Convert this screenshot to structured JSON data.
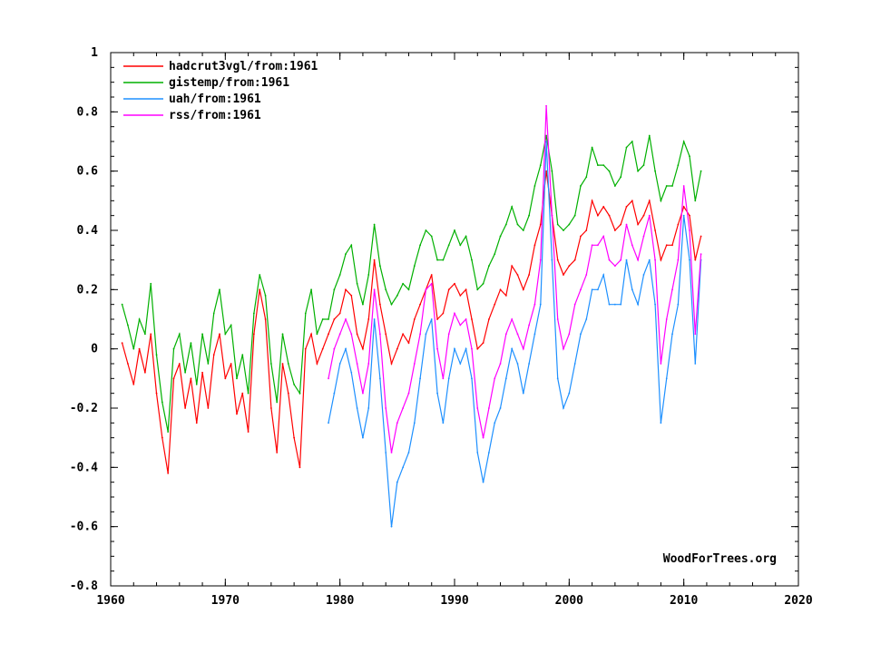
{
  "chart_data": {
    "type": "line",
    "title": "",
    "xlabel": "",
    "ylabel": "",
    "xlim": [
      1960,
      2020
    ],
    "ylim": [
      -0.8,
      1
    ],
    "x_ticks": [
      "1960",
      "1970",
      "1980",
      "1990",
      "2000",
      "2010",
      "2020"
    ],
    "y_ticks": [
      "1",
      "0.8",
      "0.6",
      "0.4",
      "0.2",
      "0",
      "-0.2",
      "-0.4",
      "-0.6",
      "-0.8"
    ],
    "grid": false,
    "legend_position": "top-left",
    "credit": "WoodForTrees.org",
    "series": [
      {
        "name": "hadcrut3vgl/from:1961",
        "color": "#ff0000",
        "x": [
          1961.0,
          1961.5,
          1962.0,
          1962.5,
          1963.0,
          1963.5,
          1964.0,
          1964.5,
          1965.0,
          1965.5,
          1966.0,
          1966.5,
          1967.0,
          1967.5,
          1968.0,
          1968.5,
          1969.0,
          1969.5,
          1970.0,
          1970.5,
          1971.0,
          1971.5,
          1972.0,
          1972.5,
          1973.0,
          1973.5,
          1974.0,
          1974.5,
          1975.0,
          1975.5,
          1976.0,
          1976.5,
          1977.0,
          1977.5,
          1978.0,
          1978.5,
          1979.0,
          1979.5,
          1980.0,
          1980.5,
          1981.0,
          1981.5,
          1982.0,
          1982.5,
          1983.0,
          1983.5,
          1984.0,
          1984.5,
          1985.0,
          1985.5,
          1986.0,
          1986.5,
          1987.0,
          1987.5,
          1988.0,
          1988.5,
          1989.0,
          1989.5,
          1990.0,
          1990.5,
          1991.0,
          1991.5,
          1992.0,
          1992.5,
          1993.0,
          1993.5,
          1994.0,
          1994.5,
          1995.0,
          1995.5,
          1996.0,
          1996.5,
          1997.0,
          1997.5,
          1998.0,
          1998.5,
          1999.0,
          1999.5,
          2000.0,
          2000.5,
          2001.0,
          2001.5,
          2002.0,
          2002.5,
          2003.0,
          2003.5,
          2004.0,
          2004.5,
          2005.0,
          2005.5,
          2006.0,
          2006.5,
          2007.0,
          2007.5,
          2008.0,
          2008.5,
          2009.0,
          2009.5,
          2010.0,
          2010.5,
          2011.0,
          2011.5
        ],
        "y": [
          0.02,
          -0.05,
          -0.12,
          0.0,
          -0.08,
          0.05,
          -0.15,
          -0.3,
          -0.42,
          -0.1,
          -0.05,
          -0.2,
          -0.1,
          -0.25,
          -0.08,
          -0.2,
          -0.02,
          0.05,
          -0.1,
          -0.05,
          -0.22,
          -0.15,
          -0.28,
          0.05,
          0.2,
          0.1,
          -0.2,
          -0.35,
          -0.05,
          -0.15,
          -0.3,
          -0.4,
          0.0,
          0.05,
          -0.05,
          0.0,
          0.05,
          0.1,
          0.12,
          0.2,
          0.18,
          0.05,
          0.0,
          0.1,
          0.3,
          0.15,
          0.05,
          -0.05,
          0.0,
          0.05,
          0.02,
          0.1,
          0.15,
          0.2,
          0.25,
          0.1,
          0.12,
          0.2,
          0.22,
          0.18,
          0.2,
          0.1,
          0.0,
          0.02,
          0.1,
          0.15,
          0.2,
          0.18,
          0.28,
          0.25,
          0.2,
          0.25,
          0.35,
          0.42,
          0.6,
          0.45,
          0.3,
          0.25,
          0.28,
          0.3,
          0.38,
          0.4,
          0.5,
          0.45,
          0.48,
          0.45,
          0.4,
          0.42,
          0.48,
          0.5,
          0.42,
          0.45,
          0.5,
          0.4,
          0.3,
          0.35,
          0.35,
          0.42,
          0.48,
          0.45,
          0.3,
          0.38
        ]
      },
      {
        "name": "gistemp/from:1961",
        "color": "#00b000",
        "x": [
          1961.0,
          1961.5,
          1962.0,
          1962.5,
          1963.0,
          1963.5,
          1964.0,
          1964.5,
          1965.0,
          1965.5,
          1966.0,
          1966.5,
          1967.0,
          1967.5,
          1968.0,
          1968.5,
          1969.0,
          1969.5,
          1970.0,
          1970.5,
          1971.0,
          1971.5,
          1972.0,
          1972.5,
          1973.0,
          1973.5,
          1974.0,
          1974.5,
          1975.0,
          1975.5,
          1976.0,
          1976.5,
          1977.0,
          1977.5,
          1978.0,
          1978.5,
          1979.0,
          1979.5,
          1980.0,
          1980.5,
          1981.0,
          1981.5,
          1982.0,
          1982.5,
          1983.0,
          1983.5,
          1984.0,
          1984.5,
          1985.0,
          1985.5,
          1986.0,
          1986.5,
          1987.0,
          1987.5,
          1988.0,
          1988.5,
          1989.0,
          1989.5,
          1990.0,
          1990.5,
          1991.0,
          1991.5,
          1992.0,
          1992.5,
          1993.0,
          1993.5,
          1994.0,
          1994.5,
          1995.0,
          1995.5,
          1996.0,
          1996.5,
          1997.0,
          1997.5,
          1998.0,
          1998.5,
          1999.0,
          1999.5,
          2000.0,
          2000.5,
          2001.0,
          2001.5,
          2002.0,
          2002.5,
          2003.0,
          2003.5,
          2004.0,
          2004.5,
          2005.0,
          2005.5,
          2006.0,
          2006.5,
          2007.0,
          2007.5,
          2008.0,
          2008.5,
          2009.0,
          2009.5,
          2010.0,
          2010.5,
          2011.0,
          2011.5
        ],
        "y": [
          0.15,
          0.08,
          0.0,
          0.1,
          0.05,
          0.22,
          -0.02,
          -0.18,
          -0.28,
          0.0,
          0.05,
          -0.08,
          0.02,
          -0.12,
          0.05,
          -0.05,
          0.12,
          0.2,
          0.05,
          0.08,
          -0.1,
          -0.02,
          -0.15,
          0.12,
          0.25,
          0.18,
          -0.05,
          -0.18,
          0.05,
          -0.05,
          -0.12,
          -0.15,
          0.12,
          0.2,
          0.05,
          0.1,
          0.1,
          0.2,
          0.25,
          0.32,
          0.35,
          0.22,
          0.15,
          0.25,
          0.42,
          0.28,
          0.2,
          0.15,
          0.18,
          0.22,
          0.2,
          0.28,
          0.35,
          0.4,
          0.38,
          0.3,
          0.3,
          0.35,
          0.4,
          0.35,
          0.38,
          0.3,
          0.2,
          0.22,
          0.28,
          0.32,
          0.38,
          0.42,
          0.48,
          0.42,
          0.4,
          0.45,
          0.55,
          0.62,
          0.72,
          0.6,
          0.42,
          0.4,
          0.42,
          0.45,
          0.55,
          0.58,
          0.68,
          0.62,
          0.62,
          0.6,
          0.55,
          0.58,
          0.68,
          0.7,
          0.6,
          0.62,
          0.72,
          0.6,
          0.5,
          0.55,
          0.55,
          0.62,
          0.7,
          0.65,
          0.5,
          0.6
        ]
      },
      {
        "name": "uah/from:1961",
        "color": "#1e90ff",
        "x": [
          1979.0,
          1979.5,
          1980.0,
          1980.5,
          1981.0,
          1981.5,
          1982.0,
          1982.5,
          1983.0,
          1983.5,
          1984.0,
          1984.5,
          1985.0,
          1985.5,
          1986.0,
          1986.5,
          1987.0,
          1987.5,
          1988.0,
          1988.5,
          1989.0,
          1989.5,
          1990.0,
          1990.5,
          1991.0,
          1991.5,
          1992.0,
          1992.5,
          1993.0,
          1993.5,
          1994.0,
          1994.5,
          1995.0,
          1995.5,
          1996.0,
          1996.5,
          1997.0,
          1997.5,
          1998.0,
          1998.5,
          1999.0,
          1999.5,
          2000.0,
          2000.5,
          2001.0,
          2001.5,
          2002.0,
          2002.5,
          2003.0,
          2003.5,
          2004.0,
          2004.5,
          2005.0,
          2005.5,
          2006.0,
          2006.5,
          2007.0,
          2007.5,
          2008.0,
          2008.5,
          2009.0,
          2009.5,
          2010.0,
          2010.5,
          2011.0,
          2011.5
        ],
        "y": [
          -0.25,
          -0.15,
          -0.05,
          0.0,
          -0.08,
          -0.2,
          -0.3,
          -0.2,
          0.1,
          -0.1,
          -0.35,
          -0.6,
          -0.45,
          -0.4,
          -0.35,
          -0.25,
          -0.1,
          0.05,
          0.1,
          -0.15,
          -0.25,
          -0.1,
          0.0,
          -0.05,
          0.0,
          -0.1,
          -0.35,
          -0.45,
          -0.35,
          -0.25,
          -0.2,
          -0.1,
          0.0,
          -0.05,
          -0.15,
          -0.05,
          0.05,
          0.15,
          0.7,
          0.3,
          -0.1,
          -0.2,
          -0.15,
          -0.05,
          0.05,
          0.1,
          0.2,
          0.2,
          0.25,
          0.15,
          0.15,
          0.15,
          0.3,
          0.2,
          0.15,
          0.25,
          0.3,
          0.15,
          -0.25,
          -0.1,
          0.05,
          0.15,
          0.45,
          0.3,
          -0.05,
          0.3
        ]
      },
      {
        "name": "rss/from:1961",
        "color": "#ff00ff",
        "x": [
          1979.0,
          1979.5,
          1980.0,
          1980.5,
          1981.0,
          1981.5,
          1982.0,
          1982.5,
          1983.0,
          1983.5,
          1984.0,
          1984.5,
          1985.0,
          1985.5,
          1986.0,
          1986.5,
          1987.0,
          1987.5,
          1988.0,
          1988.5,
          1989.0,
          1989.5,
          1990.0,
          1990.5,
          1991.0,
          1991.5,
          1992.0,
          1992.5,
          1993.0,
          1993.5,
          1994.0,
          1994.5,
          1995.0,
          1995.5,
          1996.0,
          1996.5,
          1997.0,
          1997.5,
          1998.0,
          1998.5,
          1999.0,
          1999.5,
          2000.0,
          2000.5,
          2001.0,
          2001.5,
          2002.0,
          2002.5,
          2003.0,
          2003.5,
          2004.0,
          2004.5,
          2005.0,
          2005.5,
          2006.0,
          2006.5,
          2007.0,
          2007.5,
          2008.0,
          2008.5,
          2009.0,
          2009.5,
          2010.0,
          2010.5,
          2011.0,
          2011.5
        ],
        "y": [
          -0.1,
          0.0,
          0.05,
          0.1,
          0.05,
          -0.05,
          -0.15,
          -0.05,
          0.2,
          0.05,
          -0.2,
          -0.35,
          -0.25,
          -0.2,
          -0.15,
          -0.05,
          0.05,
          0.2,
          0.22,
          0.0,
          -0.1,
          0.05,
          0.12,
          0.08,
          0.1,
          0.0,
          -0.2,
          -0.3,
          -0.2,
          -0.1,
          -0.05,
          0.05,
          0.1,
          0.05,
          0.0,
          0.08,
          0.15,
          0.3,
          0.82,
          0.45,
          0.1,
          0.0,
          0.05,
          0.15,
          0.2,
          0.25,
          0.35,
          0.35,
          0.38,
          0.3,
          0.28,
          0.3,
          0.42,
          0.35,
          0.3,
          0.38,
          0.45,
          0.3,
          -0.05,
          0.1,
          0.2,
          0.3,
          0.55,
          0.4,
          0.05,
          0.32
        ]
      }
    ]
  }
}
